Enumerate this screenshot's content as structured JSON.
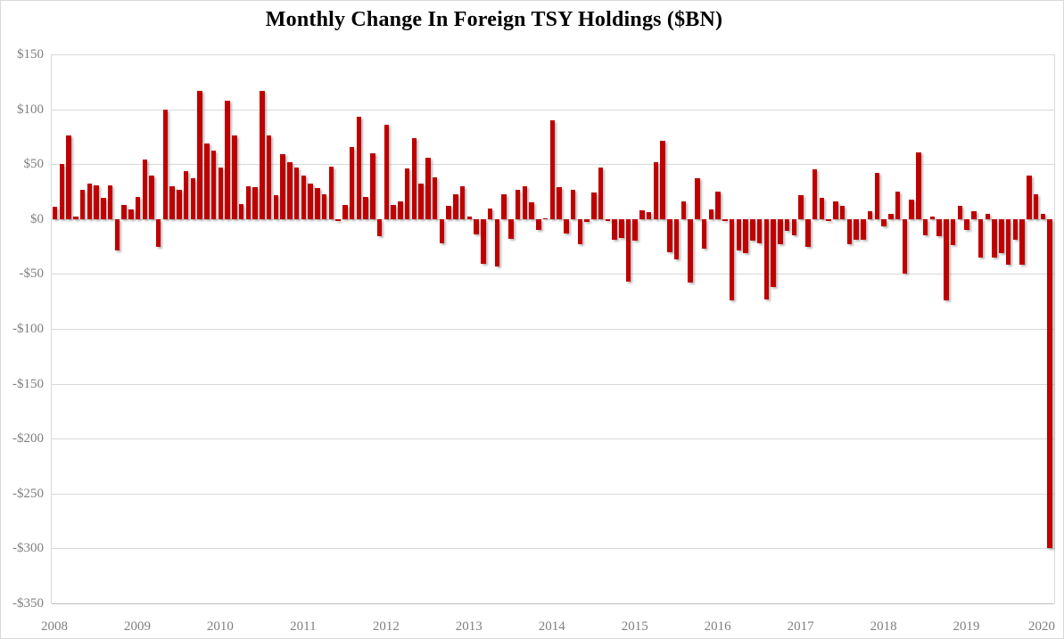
{
  "title": "Monthly Change In Foreign TSY Holdings  ($BN)",
  "colors": {
    "bar": "#c00000",
    "gridline": "#d9d9d9",
    "axis_line": "#bfbfbf",
    "tick_label": "#7f7f7f",
    "title": "#000000",
    "background": "#ffffff"
  },
  "chart_data": {
    "type": "bar",
    "title": "Monthly Change In Foreign TSY Holdings  ($BN)",
    "unit": "$BN",
    "frequency": "monthly",
    "start_month": "2008-01",
    "xlabel": "",
    "ylabel": "",
    "ylim": [
      -350,
      150
    ],
    "grid": true,
    "legend": false,
    "x_tick_labels": [
      "2008",
      "2009",
      "2010",
      "2011",
      "2012",
      "2013",
      "2014",
      "2015",
      "2016",
      "2017",
      "2018",
      "2019",
      "2020"
    ],
    "y_ticks": [
      150,
      100,
      50,
      0,
      -50,
      -100,
      -150,
      -200,
      -250,
      -300,
      -350
    ],
    "y_tick_labels": [
      "$150",
      "$100",
      "$50",
      "$0",
      "-$50",
      "-$100",
      "-$150",
      "-$200",
      "-$250",
      "-$300",
      "-$350"
    ],
    "values": [
      11,
      50,
      76,
      2,
      27,
      32,
      31,
      19,
      31,
      -29,
      13,
      9,
      20,
      54,
      40,
      -25,
      100,
      30,
      27,
      44,
      37,
      117,
      69,
      62,
      47,
      108,
      76,
      14,
      30,
      29,
      117,
      76,
      22,
      59,
      52,
      47,
      40,
      32,
      28,
      23,
      48,
      -2,
      13,
      66,
      93,
      20,
      60,
      -16,
      86,
      13,
      16,
      46,
      74,
      32,
      56,
      38,
      -22,
      12,
      23,
      30,
      2,
      -14,
      -41,
      10,
      -43,
      23,
      -18,
      27,
      30,
      15,
      -10,
      1,
      90,
      29,
      -13,
      27,
      -23,
      -3,
      24,
      47,
      -2,
      -19,
      -17,
      -57,
      -20,
      8,
      6,
      52,
      71,
      -30,
      -37,
      16,
      -58,
      37,
      -27,
      9,
      25,
      -2,
      -74,
      -29,
      -31,
      -20,
      -22,
      -73,
      -62,
      -23,
      -11,
      -15,
      22,
      -25,
      45,
      19,
      -2,
      16,
      12,
      -23,
      -19,
      -19,
      7,
      42,
      -7,
      5,
      25,
      -50,
      18,
      61,
      -15,
      2,
      -16,
      -74,
      -24,
      12,
      -10,
      7,
      -35,
      5,
      -35,
      -31,
      -42,
      -19,
      -42,
      40,
      23,
      5,
      -300
    ]
  },
  "layout_note": "values run Jan 2008 through Jan 2020; final bar is the record -$300BN plunge"
}
